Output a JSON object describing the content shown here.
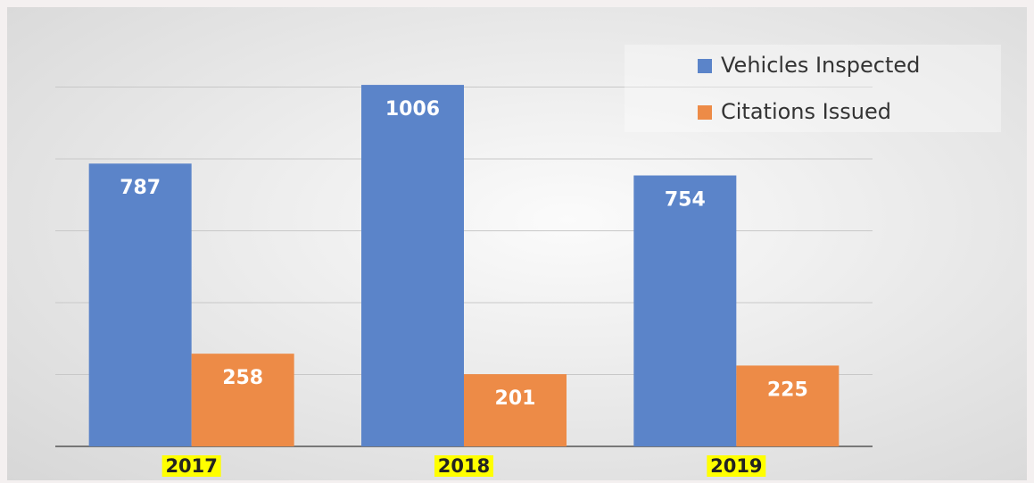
{
  "chart_data": {
    "type": "bar",
    "categories": [
      "2017",
      "2018",
      "2019"
    ],
    "series": [
      {
        "name": "Vehicles Inspected",
        "color": "#5b84c9",
        "values": [
          787,
          1006,
          754
        ]
      },
      {
        "name": "Citations Issued",
        "color": "#ed8b47",
        "values": [
          258,
          201,
          225
        ]
      }
    ],
    "ylim": [
      0,
      1200
    ],
    "yticks": [
      0,
      200,
      400,
      600,
      800,
      1000
    ],
    "grid": true,
    "legend": "top-right"
  }
}
